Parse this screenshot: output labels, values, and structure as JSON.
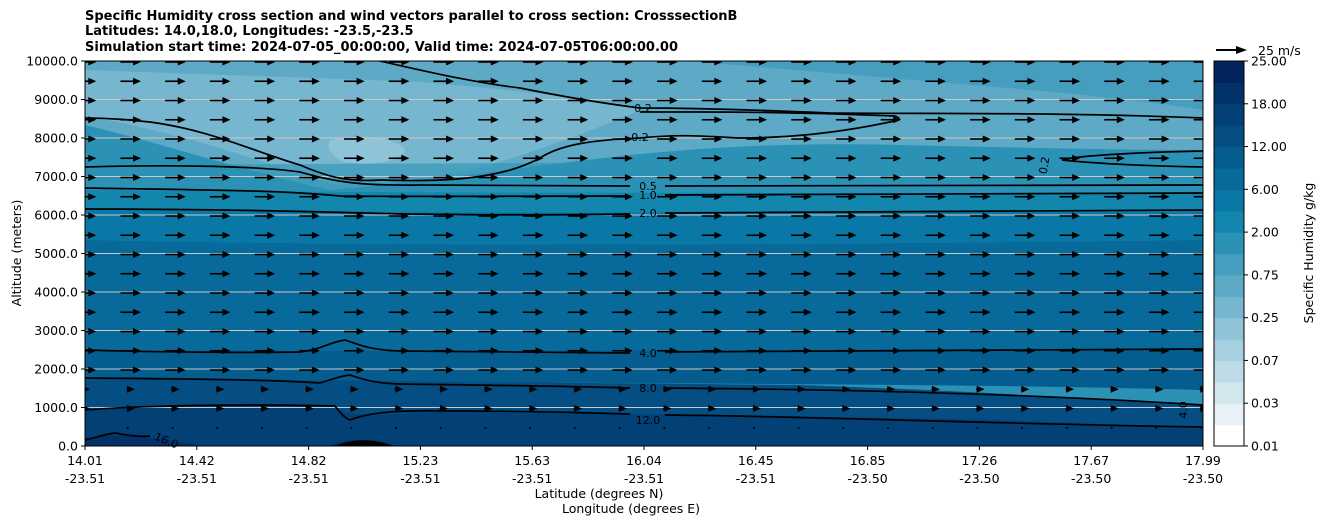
{
  "title_lines": [
    "Specific Humidity cross section and wind vectors parallel to cross section: CrosssectionB",
    "Latitudes: 14.0,18.0, Longitudes: -23.5,-23.5",
    "Simulation start time: 2024-07-05_00:00:00, Valid time: 2024-07-05T06:00:00.00"
  ],
  "chart_data": {
    "type": "heatmap",
    "subtype": "filled-contour cross section with line contours and wind vectors",
    "xlabel": "Latitude (degrees N)",
    "xlabel2": "Longitude (degrees E)",
    "ylabel": "Altitude (meters)",
    "ylim": [
      0,
      10000
    ],
    "yticks": [
      "0.0",
      "1000.0",
      "2000.0",
      "3000.0",
      "4000.0",
      "5000.0",
      "6000.0",
      "7000.0",
      "8000.0",
      "9000.0",
      "10000.0"
    ],
    "xticks": [
      {
        "lat": "14.01",
        "lon": "-23.51"
      },
      {
        "lat": "14.42",
        "lon": "-23.51"
      },
      {
        "lat": "14.82",
        "lon": "-23.51"
      },
      {
        "lat": "15.23",
        "lon": "-23.51"
      },
      {
        "lat": "15.63",
        "lon": "-23.51"
      },
      {
        "lat": "16.04",
        "lon": "-23.51"
      },
      {
        "lat": "16.45",
        "lon": "-23.51"
      },
      {
        "lat": "16.85",
        "lon": "-23.50"
      },
      {
        "lat": "17.26",
        "lon": "-23.50"
      },
      {
        "lat": "17.67",
        "lon": "-23.50"
      },
      {
        "lat": "17.99",
        "lon": "-23.50"
      }
    ],
    "grid": "horizontal",
    "colorbar": {
      "label": "Specific Humidity g/kg",
      "levels": [
        0.01,
        0.02,
        0.03,
        0.05,
        0.07,
        0.1,
        0.25,
        0.5,
        0.75,
        1.0,
        2.0,
        4.0,
        6.0,
        8.0,
        12.0,
        15.0,
        18.0,
        21.0,
        25.0
      ],
      "tick_labels": [
        "0.01",
        "0.03",
        "0.07",
        "0.25",
        "0.75",
        "2.00",
        "6.00",
        "12.00",
        "18.00",
        "25.00"
      ],
      "colors": [
        "#ffffff",
        "#e8f2f6",
        "#d2e6ee",
        "#bcdbe7",
        "#a6cfdf",
        "#8fc3d7",
        "#76b6ce",
        "#5eaac6",
        "#459ebe",
        "#2b92b6",
        "#1386ae",
        "#0a78a6",
        "#076a9b",
        "#055c8f",
        "#044e83",
        "#034076",
        "#023269",
        "#01245c"
      ]
    },
    "contour_labels": [
      "0.2",
      "0.2",
      "0.5",
      "1.0",
      "2.0",
      "4.0",
      "8.0",
      "12.0",
      "16.0",
      "0.2",
      "4.0"
    ],
    "quiver_key": {
      "label": "25 m/s",
      "value": 25
    },
    "wind_u_ms": 15
  }
}
